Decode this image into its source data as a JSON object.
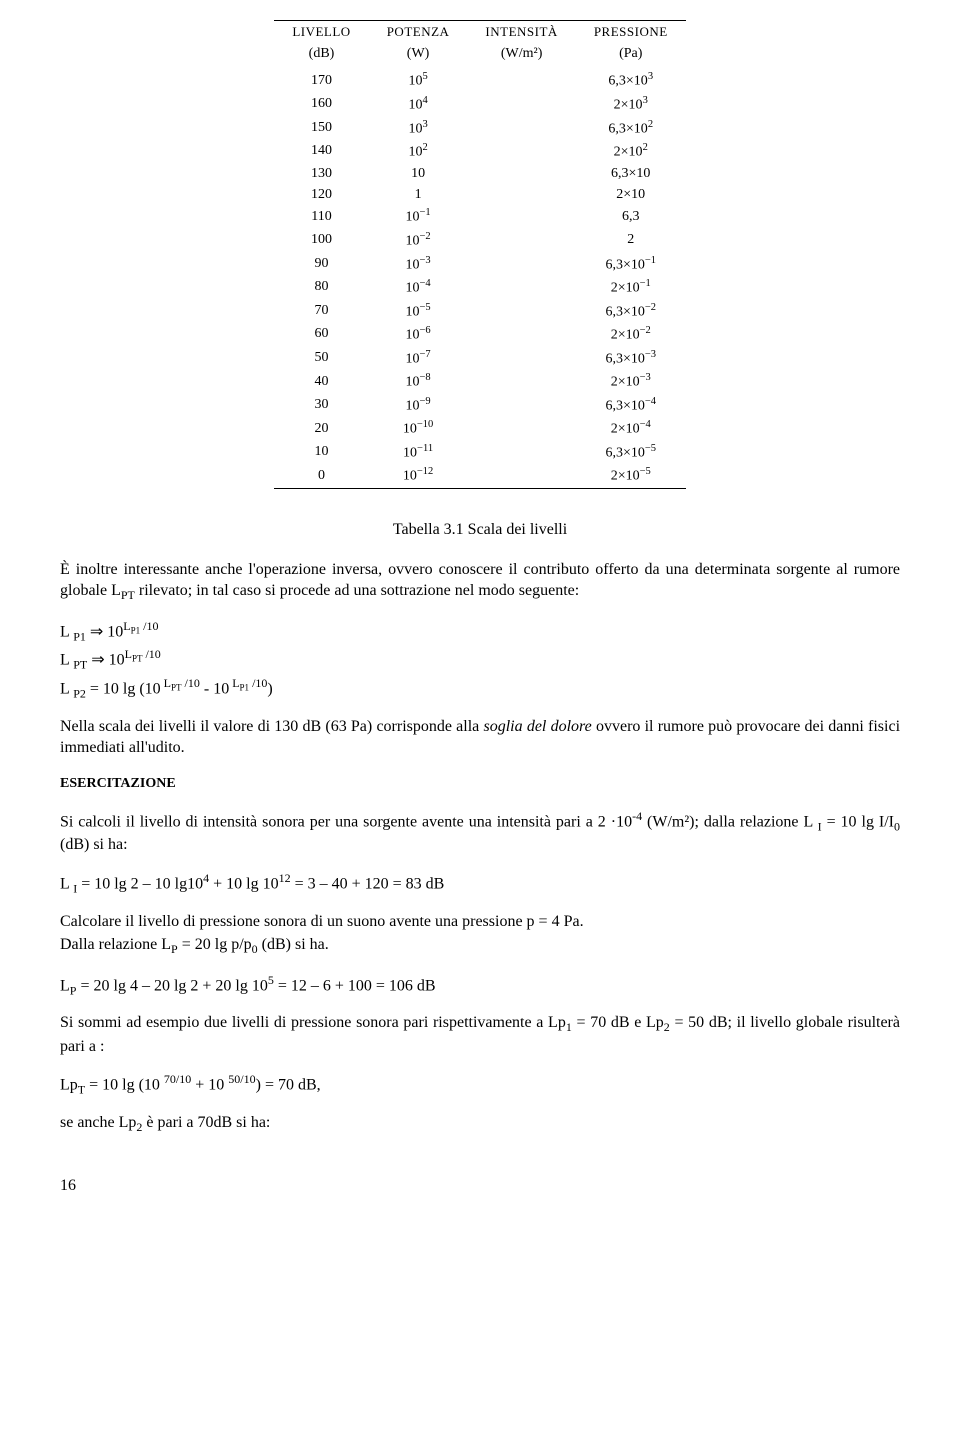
{
  "table": {
    "headers": {
      "c1a": "LIVELLO",
      "c1b": "(dB)",
      "c2a": "POTENZA",
      "c2b": "(W)",
      "c3a": "INTENSITÀ",
      "c3b": "(W/m²)",
      "c4a": "PRESSIONE",
      "c4b": "(Pa)"
    },
    "rows": [
      {
        "level": "170",
        "power_base": "10",
        "power_exp": "5",
        "press_mant": "6,3",
        "press_base": "10",
        "press_exp": "3"
      },
      {
        "level": "160",
        "power_base": "10",
        "power_exp": "4",
        "press_mant": "2",
        "press_base": "10",
        "press_exp": "3"
      },
      {
        "level": "150",
        "power_base": "10",
        "power_exp": "3",
        "press_mant": "6,3",
        "press_base": "10",
        "press_exp": "2"
      },
      {
        "level": "140",
        "power_base": "10",
        "power_exp": "2",
        "press_mant": "2",
        "press_base": "10",
        "press_exp": "2"
      },
      {
        "level": "130",
        "power_base": "10",
        "power_exp": "",
        "press_mant": "6,3",
        "press_base": "10",
        "press_exp": ""
      },
      {
        "level": "120",
        "power_base": "1",
        "power_exp": "",
        "press_mant": "2",
        "press_base": "10",
        "press_exp": ""
      },
      {
        "level": "110",
        "power_base": "10",
        "power_exp": "−1",
        "press_mant": "6,3",
        "press_base": "",
        "press_exp": ""
      },
      {
        "level": "100",
        "power_base": "10",
        "power_exp": "−2",
        "press_mant": "2",
        "press_base": "",
        "press_exp": ""
      },
      {
        "level": "90",
        "power_base": "10",
        "power_exp": "−3",
        "press_mant": "6,3",
        "press_base": "10",
        "press_exp": "−1"
      },
      {
        "level": "80",
        "power_base": "10",
        "power_exp": "−4",
        "press_mant": "2",
        "press_base": "10",
        "press_exp": "−1"
      },
      {
        "level": "70",
        "power_base": "10",
        "power_exp": "−5",
        "press_mant": "6,3",
        "press_base": "10",
        "press_exp": "−2"
      },
      {
        "level": "60",
        "power_base": "10",
        "power_exp": "−6",
        "press_mant": "2",
        "press_base": "10",
        "press_exp": "−2"
      },
      {
        "level": "50",
        "power_base": "10",
        "power_exp": "−7",
        "press_mant": "6,3",
        "press_base": "10",
        "press_exp": "−3"
      },
      {
        "level": "40",
        "power_base": "10",
        "power_exp": "−8",
        "press_mant": "2",
        "press_base": "10",
        "press_exp": "−3"
      },
      {
        "level": "30",
        "power_base": "10",
        "power_exp": "−9",
        "press_mant": "6,3",
        "press_base": "10",
        "press_exp": "−4"
      },
      {
        "level": "20",
        "power_base": "10",
        "power_exp": "−10",
        "press_mant": "2",
        "press_base": "10",
        "press_exp": "−4"
      },
      {
        "level": "10",
        "power_base": "10",
        "power_exp": "−11",
        "press_mant": "6,3",
        "press_base": "10",
        "press_exp": "−5"
      },
      {
        "level": "0",
        "power_base": "10",
        "power_exp": "−12",
        "press_mant": "2",
        "press_base": "10",
        "press_exp": "−5"
      }
    ]
  },
  "caption": "Tabella 3.1 Scala dei livelli",
  "para1_a": "È inoltre interessante anche l'operazione inversa, ovvero conoscere il contributo offerto da una determinata sorgente al rumore globale L",
  "para1_sub": "PT",
  "para1_b": " rilevato; in tal caso si procede ad una sottrazione nel modo seguente:",
  "formulas1": {
    "l1_a": "L ",
    "l1_sub1": "P1",
    "l1_b": " ⇒ 10",
    "l1_exp_l": "L",
    "l1_exp_sub": "P1",
    "l1_exp_r": " /10",
    "l2_a": "L ",
    "l2_sub1": "PT",
    "l2_b": " ⇒ 10",
    "l2_exp_l": "L",
    "l2_exp_sub": "PT",
    "l2_exp_r": " /10",
    "l3_a": "L ",
    "l3_sub1": "P2",
    "l3_b": " = 10 lg (10",
    "l3_e1_l": " L",
    "l3_e1_sub": "PT",
    "l3_e1_r": " /10",
    "l3_c": " - 10",
    "l3_e2_l": " L",
    "l3_e2_sub": "P1",
    "l3_e2_r": " /10",
    "l3_d": ")"
  },
  "para2_a": "Nella scala dei livelli il valore di 130 dB (63 Pa) corrisponde alla ",
  "para2_i": "soglia del dolore",
  "para2_b": " ovvero il rumore può provocare dei danni fisici immediati all'udito.",
  "ex_head": "ESERCITAZIONE",
  "ex_p1_a": "Si calcoli il livello di intensità sonora per una sorgente avente una intensità pari a 2 ·10",
  "ex_p1_exp": "-4",
  "ex_p1_b": " (W/m²); dalla relazione L ",
  "ex_p1_sub": "I",
  "ex_p1_c": " = 10 lg I/I",
  "ex_p1_sub0": "0",
  "ex_p1_d": " (dB) si ha:",
  "ex_formula1": {
    "a": "L ",
    "sub": "I",
    "b": " = 10 lg 2 – 10 lg10",
    "e1": "4",
    "c": " + 10 lg 10",
    "e2": "12",
    "d": " = 3 – 40 + 120 = 83 dB"
  },
  "ex_p2": "Calcolare il livello di pressione sonora di un suono avente una pressione p = 4 Pa.",
  "ex_p3_a": "Dalla relazione L",
  "ex_p3_sub": "P",
  "ex_p3_b": " = 20 lg p/p",
  "ex_p3_sub0": "0",
  "ex_p3_c": " (dB) si ha.",
  "ex_formula2": {
    "a": "L",
    "sub": "P",
    "b": " = 20 lg 4 – 20 lg 2 + 20 lg 10",
    "e1": "5",
    "c": " = 12 – 6 + 100 = 106 dB"
  },
  "ex_p4_a": "Si sommi ad esempio due livelli di pressione sonora pari rispettivamente a Lp",
  "ex_p4_s1": "1",
  "ex_p4_b": " = 70 dB e Lp",
  "ex_p4_s2": "2",
  "ex_p4_c": " = 50 dB; il livello globale risulterà pari a :",
  "ex_formula3": {
    "a": "Lp",
    "sub": "T",
    "b": " = 10 lg (10 ",
    "e1": "70/10",
    "c": " + 10 ",
    "e2": "50/10",
    "d": ") = 70 dB,"
  },
  "ex_p5_a": "se anche Lp",
  "ex_p5_s": "2",
  "ex_p5_b": " è pari a 70dB si ha:",
  "page_number": "16"
}
